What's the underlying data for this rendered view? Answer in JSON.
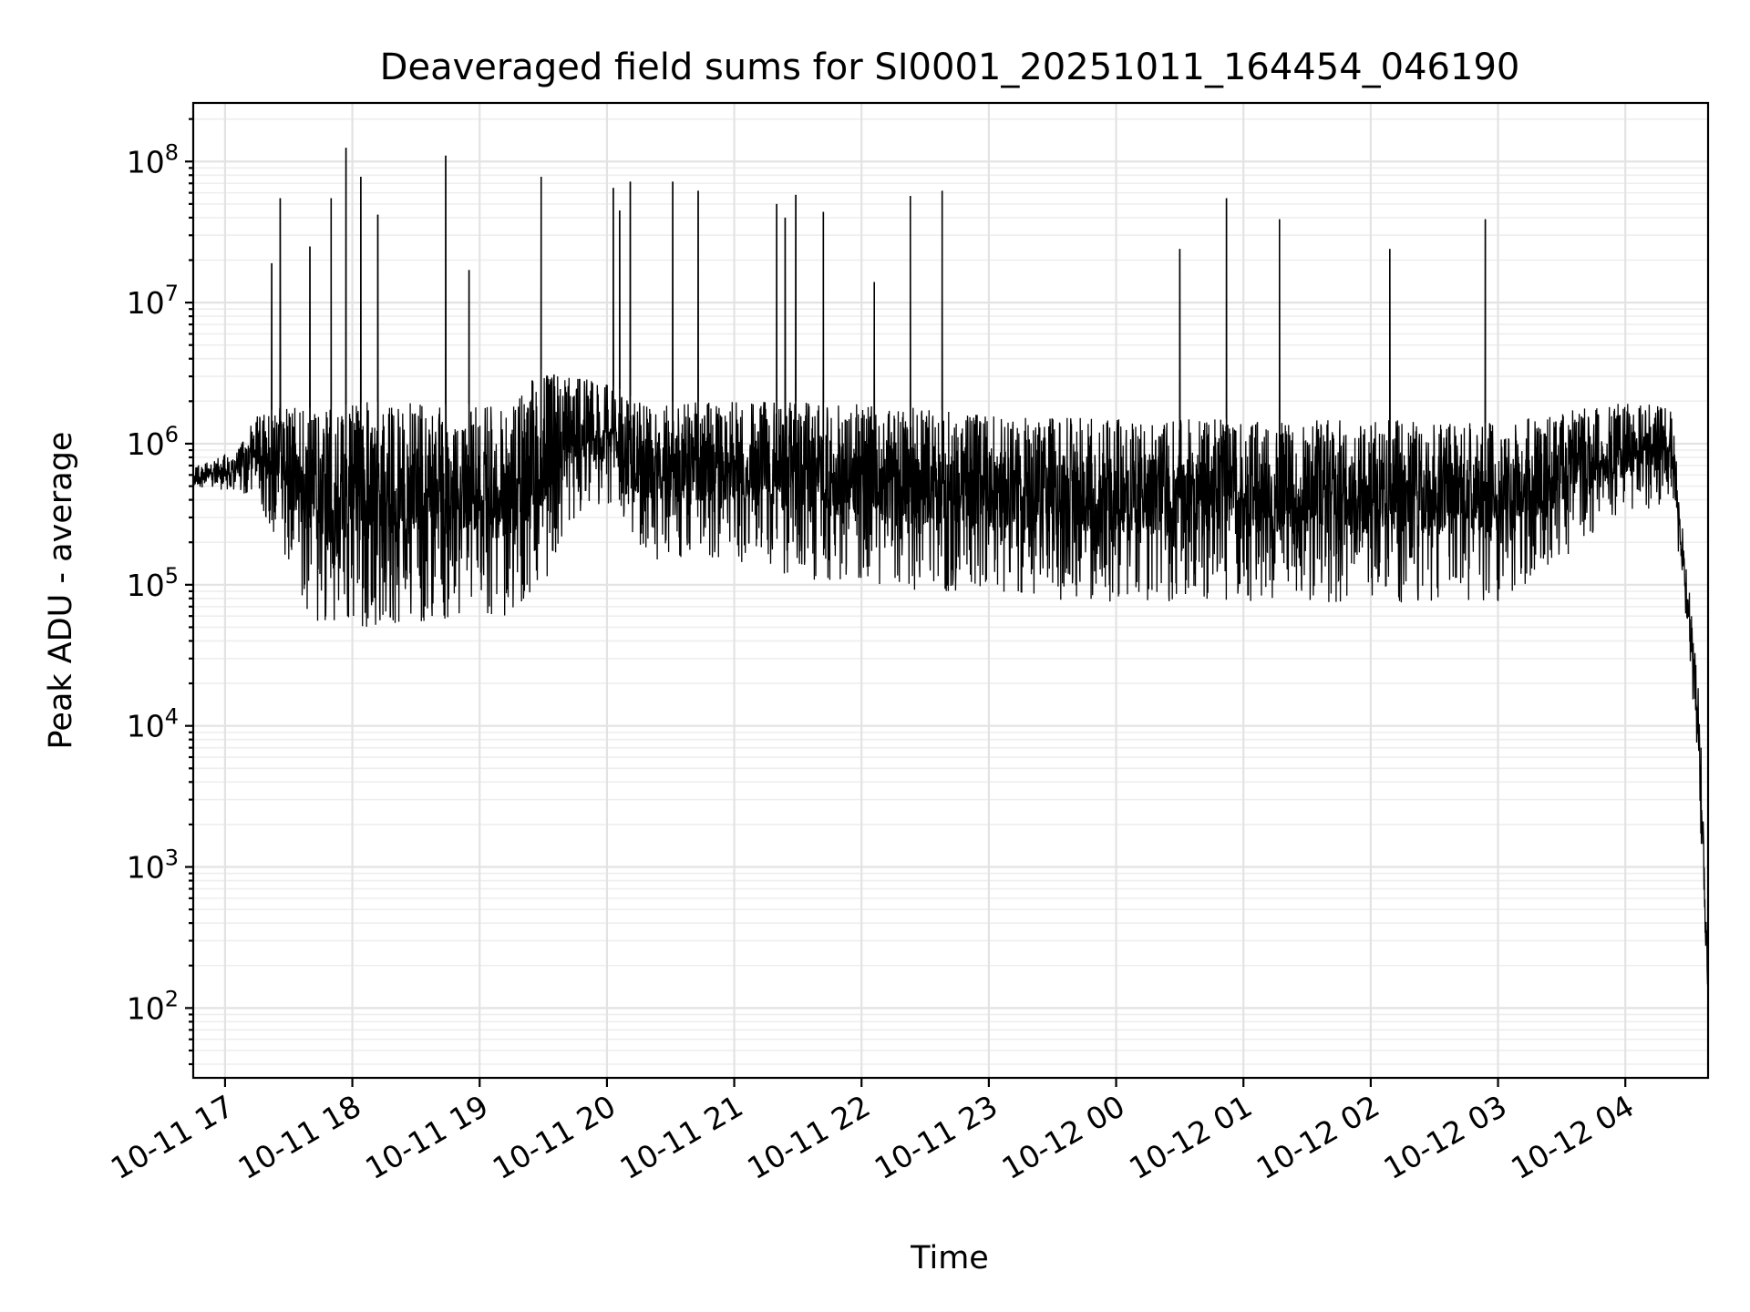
{
  "chart_data": {
    "type": "line",
    "title": "Deaveraged field sums for SI0001_20251011_164454_046190",
    "xlabel": "Time",
    "ylabel": "Peak ADU - average",
    "y_scale": "log",
    "xlim": [
      "2025-10-11 16:45",
      "2025-10-12 04:39"
    ],
    "ylim": [
      32,
      260000000
    ],
    "grid": "on (major and minor, light gray)",
    "line_color": "#000000",
    "x_ticks": [
      {
        "value": "2025-10-11 17:00",
        "label": "10-11 17"
      },
      {
        "value": "2025-10-11 18:00",
        "label": "10-11 18"
      },
      {
        "value": "2025-10-11 19:00",
        "label": "10-11 19"
      },
      {
        "value": "2025-10-11 20:00",
        "label": "10-11 20"
      },
      {
        "value": "2025-10-11 21:00",
        "label": "10-11 21"
      },
      {
        "value": "2025-10-11 22:00",
        "label": "10-11 22"
      },
      {
        "value": "2025-10-11 23:00",
        "label": "10-11 23"
      },
      {
        "value": "2025-10-12 00:00",
        "label": "10-12 00"
      },
      {
        "value": "2025-10-12 01:00",
        "label": "10-12 01"
      },
      {
        "value": "2025-10-12 02:00",
        "label": "10-12 02"
      },
      {
        "value": "2025-10-12 03:00",
        "label": "10-12 03"
      },
      {
        "value": "2025-10-12 04:00",
        "label": "10-12 04"
      }
    ],
    "y_ticks": [
      {
        "value": 100,
        "base": "10",
        "exp": "2"
      },
      {
        "value": 1000,
        "base": "10",
        "exp": "3"
      },
      {
        "value": 10000,
        "base": "10",
        "exp": "4"
      },
      {
        "value": 100000,
        "base": "10",
        "exp": "5"
      },
      {
        "value": 1000000,
        "base": "10",
        "exp": "6"
      },
      {
        "value": 10000000,
        "base": "10",
        "exp": "7"
      },
      {
        "value": 100000000,
        "base": "10",
        "exp": "8"
      }
    ],
    "envelope": [
      {
        "t": "2025-10-11 16:45",
        "low": 500000,
        "high": 700000
      },
      {
        "t": "2025-10-11 17:05",
        "low": 450000,
        "high": 900000
      },
      {
        "t": "2025-10-11 17:15",
        "low": 400000,
        "high": 1600000
      },
      {
        "t": "2025-10-11 17:25",
        "low": 200000,
        "high": 1800000
      },
      {
        "t": "2025-10-11 17:35",
        "low": 80000,
        "high": 1800000
      },
      {
        "t": "2025-10-11 17:45",
        "low": 50000,
        "high": 1800000
      },
      {
        "t": "2025-10-11 18:10",
        "low": 50000,
        "high": 2000000
      },
      {
        "t": "2025-10-11 18:40",
        "low": 55000,
        "high": 1900000
      },
      {
        "t": "2025-10-11 19:15",
        "low": 60000,
        "high": 1900000
      },
      {
        "t": "2025-10-11 19:30",
        "low": 100000,
        "high": 3500000
      },
      {
        "t": "2025-10-11 19:45",
        "low": 300000,
        "high": 3000000
      },
      {
        "t": "2025-10-11 20:05",
        "low": 400000,
        "high": 2500000
      },
      {
        "t": "2025-10-11 20:15",
        "low": 150000,
        "high": 2000000
      },
      {
        "t": "2025-10-11 21:00",
        "low": 150000,
        "high": 2000000
      },
      {
        "t": "2025-10-11 21:30",
        "low": 110000,
        "high": 2000000
      },
      {
        "t": "2025-10-11 22:30",
        "low": 90000,
        "high": 1800000
      },
      {
        "t": "2025-10-11 23:00",
        "low": 80000,
        "high": 1600000
      },
      {
        "t": "2025-10-12 00:00",
        "low": 75000,
        "high": 1500000
      },
      {
        "t": "2025-10-12 02:00",
        "low": 75000,
        "high": 1500000
      },
      {
        "t": "2025-10-12 03:00",
        "low": 75000,
        "high": 1400000
      },
      {
        "t": "2025-10-12 04:00",
        "low": 300000,
        "high": 2000000
      },
      {
        "t": "2025-10-12 04:22",
        "low": 400000,
        "high": 1800000
      },
      {
        "t": "2025-10-12 04:25",
        "low": 150000,
        "high": 500000
      },
      {
        "t": "2025-10-12 04:30",
        "low": 30000,
        "high": 100000
      },
      {
        "t": "2025-10-12 04:35",
        "low": 3000,
        "high": 15000
      },
      {
        "t": "2025-10-12 04:39",
        "low": 60,
        "high": 200
      }
    ],
    "spikes": [
      {
        "t": "2025-10-11 17:22",
        "value": 19000000
      },
      {
        "t": "2025-10-11 17:26",
        "value": 55000000
      },
      {
        "t": "2025-10-11 17:40",
        "value": 25000000
      },
      {
        "t": "2025-10-11 17:50",
        "value": 55000000
      },
      {
        "t": "2025-10-11 17:57",
        "value": 125000000
      },
      {
        "t": "2025-10-11 18:04",
        "value": 78000000
      },
      {
        "t": "2025-10-11 18:12",
        "value": 42000000
      },
      {
        "t": "2025-10-11 18:44",
        "value": 110000000
      },
      {
        "t": "2025-10-11 18:55",
        "value": 17000000
      },
      {
        "t": "2025-10-11 19:29",
        "value": 78000000
      },
      {
        "t": "2025-10-11 20:03",
        "value": 65000000
      },
      {
        "t": "2025-10-11 20:06",
        "value": 45000000
      },
      {
        "t": "2025-10-11 20:11",
        "value": 72000000
      },
      {
        "t": "2025-10-11 20:31",
        "value": 72000000
      },
      {
        "t": "2025-10-11 20:43",
        "value": 62000000
      },
      {
        "t": "2025-10-11 21:20",
        "value": 50000000
      },
      {
        "t": "2025-10-11 21:24",
        "value": 40000000
      },
      {
        "t": "2025-10-11 21:29",
        "value": 58000000
      },
      {
        "t": "2025-10-11 21:42",
        "value": 44000000
      },
      {
        "t": "2025-10-11 22:06",
        "value": 14000000
      },
      {
        "t": "2025-10-11 22:23",
        "value": 57000000
      },
      {
        "t": "2025-10-11 22:38",
        "value": 62000000
      },
      {
        "t": "2025-10-12 00:30",
        "value": 24000000
      },
      {
        "t": "2025-10-12 00:52",
        "value": 55000000
      },
      {
        "t": "2025-10-12 01:17",
        "value": 39000000
      },
      {
        "t": "2025-10-12 02:09",
        "value": 24000000
      },
      {
        "t": "2025-10-12 02:54",
        "value": 39000000
      }
    ]
  }
}
